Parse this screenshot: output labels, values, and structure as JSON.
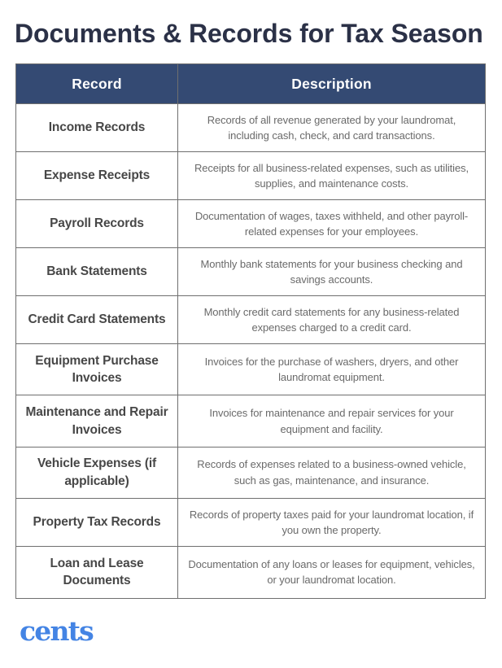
{
  "title": "Documents & Records for Tax Season",
  "table": {
    "headers": [
      "Record",
      "Description"
    ],
    "rows": [
      {
        "record": "Income Records",
        "description": "Records of all revenue generated by your laundromat, including cash, check, and card transactions."
      },
      {
        "record": "Expense Receipts",
        "description": "Receipts for all business-related expenses, such as utilities, supplies, and maintenance costs."
      },
      {
        "record": "Payroll Records",
        "description": "Documentation of wages, taxes withheld, and other payroll-related expenses for your employees."
      },
      {
        "record": "Bank Statements",
        "description": "Monthly bank statements for your business checking and savings accounts."
      },
      {
        "record": "Credit Card Statements",
        "description": "Monthly credit card statements for any business-related expenses charged to a credit card."
      },
      {
        "record": "Equipment Purchase Invoices",
        "description": "Invoices for the purchase of washers, dryers, and other laundromat equipment."
      },
      {
        "record": "Maintenance and Repair Invoices",
        "description": "Invoices for maintenance and repair services for your equipment and facility."
      },
      {
        "record": "Vehicle Expenses (if applicable)",
        "description": "Records of expenses related to a business-owned vehicle, such as gas, maintenance, and insurance."
      },
      {
        "record": "Property Tax Records",
        "description": "Records of property taxes paid for your laundromat location, if you own the property."
      },
      {
        "record": "Loan and Lease Documents",
        "description": "Documentation of any loans or leases for equipment, vehicles, or your laundromat location."
      }
    ]
  },
  "footer": {
    "logo_text": "cents"
  },
  "colors": {
    "header_bg": "#344a73",
    "title_text": "#2b3147",
    "record_text": "#474747",
    "description_text": "#6a6a6a",
    "border": "#6f6f6f",
    "logo_blue": "#4484e4",
    "background": "#ffffff"
  }
}
